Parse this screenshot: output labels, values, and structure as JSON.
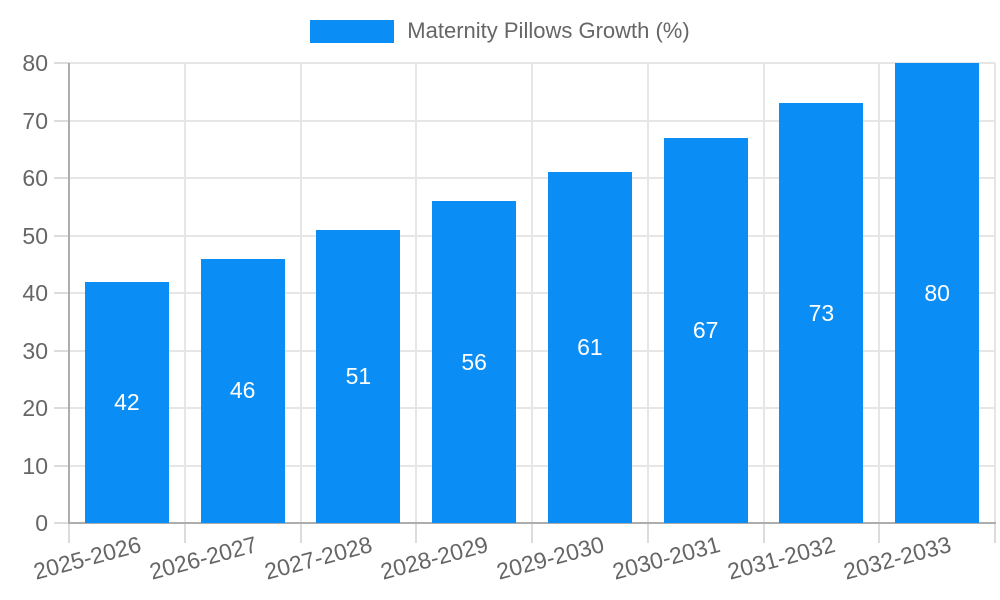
{
  "chart_data": {
    "type": "bar",
    "title": "Maternity Pillows Growth (%)",
    "categories": [
      "2025-2026",
      "2026-2027",
      "2027-2028",
      "2028-2029",
      "2029-2030",
      "2030-2031",
      "2031-2032",
      "2032-2033"
    ],
    "series": [
      {
        "name": "Maternity Pillows Growth (%)",
        "values": [
          42,
          46,
          51,
          56,
          61,
          67,
          73,
          80
        ]
      }
    ],
    "xlabel": "",
    "ylabel": "",
    "ylim": [
      0,
      80
    ],
    "yticks": [
      0,
      10,
      20,
      30,
      40,
      50,
      60,
      70,
      80
    ],
    "grid": true,
    "legend_position": "top",
    "value_labels_shown": true
  },
  "legend": {
    "items": [
      {
        "label": "Maternity Pillows Growth (%)",
        "color": "#0A8EF6"
      }
    ]
  },
  "colors": {
    "bar": "#0A8EF6",
    "grid": "#E6E6E6",
    "tick": "#DCDCDC",
    "axis": "#ADADAD",
    "text": "#666666",
    "value_label": "#FFFFFF",
    "background": "#FFFFFF"
  }
}
